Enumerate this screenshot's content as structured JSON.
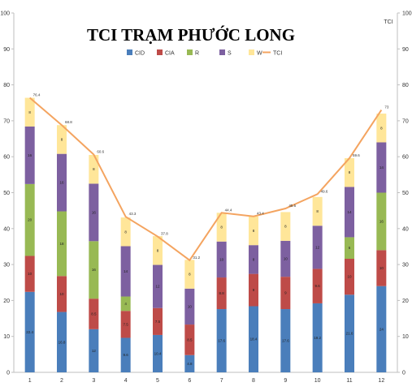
{
  "chart_data": {
    "type": "bar",
    "stacked": true,
    "title": "TCI TRẠM PHƯỚC LONG",
    "right_axis_label": "TCI",
    "categories": [
      "1",
      "2",
      "3",
      "4",
      "5",
      "6",
      "7",
      "8",
      "9",
      "10",
      "11",
      "12"
    ],
    "ylim": [
      0,
      100
    ],
    "yticks": [
      0,
      10,
      20,
      30,
      40,
      50,
      60,
      70,
      80,
      90,
      100
    ],
    "legend_position": "top",
    "series": [
      {
        "name": "CID",
        "color": "#4a7ebb",
        "values": [
          22.4,
          16.8,
          12,
          9.6,
          10.4,
          4.8,
          17.6,
          18.4,
          17.6,
          19.2,
          21.6,
          24
        ]
      },
      {
        "name": "CIA",
        "color": "#be4b48",
        "values": [
          10,
          10,
          8.5,
          7.5,
          7.5,
          8.5,
          8.8,
          9,
          9,
          9.6,
          10,
          10
        ]
      },
      {
        "name": "R",
        "color": "#98b954",
        "values": [
          20,
          18,
          16,
          4,
          0,
          0,
          0,
          0,
          0,
          0,
          6,
          16
        ]
      },
      {
        "name": "S",
        "color": "#7d60a0",
        "values": [
          16,
          16,
          16,
          14,
          12,
          10,
          10,
          8,
          10,
          12,
          14,
          14
        ]
      },
      {
        "name": "W",
        "color": "#ffe699",
        "values": [
          8,
          8,
          8,
          8,
          8,
          8,
          8,
          8,
          8,
          8,
          8,
          8
        ]
      }
    ],
    "segment_labels": [
      [
        "22.4",
        "10",
        "20",
        "16",
        "8"
      ],
      [
        "16.8",
        "10",
        "18",
        "16",
        "8"
      ],
      [
        "12",
        "8.5",
        "16",
        "16",
        "8"
      ],
      [
        "9.6",
        "7.5",
        "4",
        "14",
        "8"
      ],
      [
        "10.4",
        "7.5",
        "",
        "12",
        "8"
      ],
      [
        "4.8",
        "8.5",
        "",
        "10",
        "8"
      ],
      [
        "17.6",
        "8.8",
        "",
        "10",
        "8"
      ],
      [
        "18.4",
        "9",
        "",
        "8",
        "8"
      ],
      [
        "17.6",
        "9",
        "",
        "10",
        "8"
      ],
      [
        "19.2",
        "9.6",
        "",
        "12",
        "8"
      ],
      [
        "21.6",
        "10",
        "6",
        "14",
        "8"
      ],
      [
        "24",
        "10",
        "16",
        "14",
        "8"
      ]
    ],
    "line": {
      "name": "TCI",
      "color": "#f4a460",
      "values": [
        76.4,
        68.8,
        60.6,
        43.3,
        37.8,
        31.2,
        44.4,
        43.4,
        45.6,
        49.6,
        59.6,
        73
      ],
      "labels": [
        "76.4",
        "68.8",
        "60.6",
        "43.3",
        "37.8",
        "31.2",
        "44.4",
        "43.4",
        "45.6",
        "49.6",
        "59.6",
        "73"
      ]
    }
  }
}
